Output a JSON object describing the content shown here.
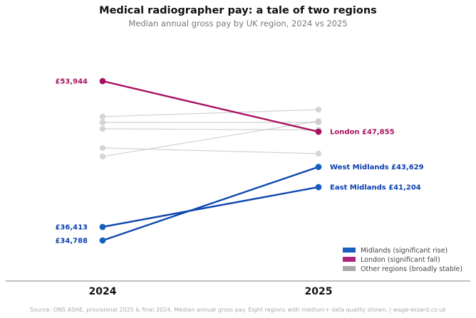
{
  "chart_data": {
    "type": "line",
    "subtype": "slope",
    "title": "Medical radiographer pay: a tale of two regions",
    "subtitle": "Median annual gross pay by UK region, 2024 vs 2025",
    "categories": [
      "2024",
      "2025"
    ],
    "grid": false,
    "legend_position": "bottom-right",
    "legend": [
      {
        "label": "Midlands (significant rise)",
        "color": "#1a5fc0"
      },
      {
        "label": "London (significant fall)",
        "color": "#b0237a"
      },
      {
        "label": "Other regions (broadly stable)",
        "color": "#aaaaaa"
      }
    ],
    "series": [
      {
        "group": "other",
        "values": [
          49670,
          50520
        ]
      },
      {
        "group": "other",
        "values": [
          48980,
          48980
        ]
      },
      {
        "group": "other",
        "values": [
          48210,
          48070
        ]
      },
      {
        "group": "other",
        "values": [
          45910,
          45220
        ]
      },
      {
        "group": "other",
        "values": [
          44880,
          49150
        ]
      },
      {
        "name": "London",
        "group": "london",
        "values": [
          53944,
          47855
        ],
        "labels": [
          "£53,944",
          "London  £47,855"
        ]
      },
      {
        "name": "West Midlands",
        "group": "midlands",
        "values": [
          34788,
          43629
        ],
        "labels": [
          "£34,788",
          "West Midlands  £43,629"
        ]
      },
      {
        "name": "East Midlands",
        "group": "midlands",
        "values": [
          36413,
          41204
        ],
        "labels": [
          "£36,413",
          "East Midlands  £41,204"
        ]
      }
    ],
    "colors": {
      "london": "#a8115f",
      "midlands": "#0d47b0",
      "midlands_dot": "#1560bd",
      "other": "#cccccc",
      "london_text": "#a8115f",
      "midlands_text": "#0a3fae"
    }
  },
  "source": "Source: ONS ASHE, provisional 2025 & final 2024. Median annual gross pay. Eight regions with medium+ data quality shown.  |  wage-wizard.co.uk"
}
